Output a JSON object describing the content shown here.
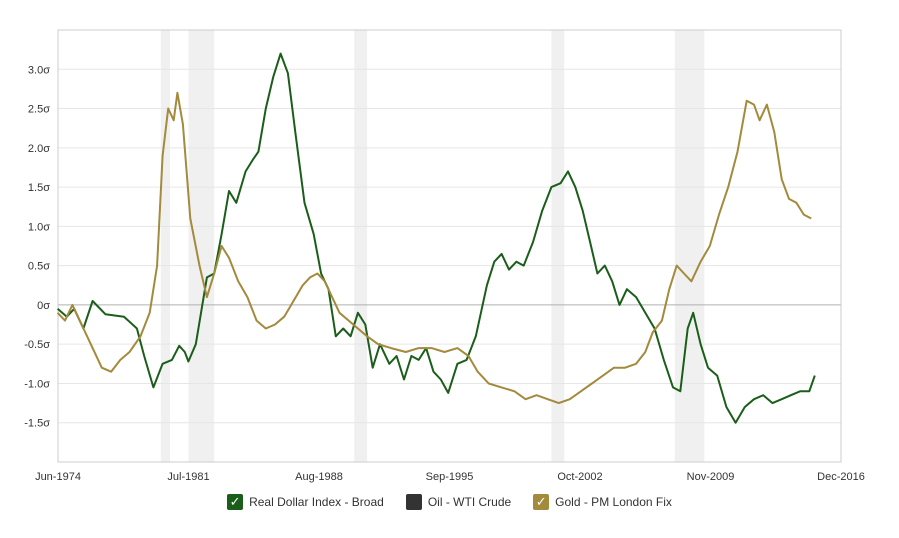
{
  "chart_data": {
    "type": "line",
    "title": "",
    "xlabel": "",
    "ylabel": "",
    "x_ticks": [
      "Jun-1974",
      "Jul-1981",
      "Aug-1988",
      "Sep-1995",
      "Oct-2002",
      "Nov-2009",
      "Dec-2016"
    ],
    "y_ticks": [
      "-1.5σ",
      "-1.0σ",
      "-0.5σ",
      "0σ",
      "0.5σ",
      "1.0σ",
      "1.5σ",
      "2.0σ",
      "2.5σ",
      "3.0σ"
    ],
    "xlim": [
      1974.42,
      2016.92
    ],
    "ylim": [
      -2.0,
      3.5
    ],
    "recessions": [
      [
        1980.0,
        1980.5
      ],
      [
        1981.5,
        1982.9
      ],
      [
        1990.5,
        1991.2
      ],
      [
        2001.2,
        2001.9
      ],
      [
        2007.9,
        2009.5
      ]
    ],
    "series": [
      {
        "name": "Real Dollar Index - Broad",
        "color": "#1a5e1a",
        "points": [
          [
            1974.4,
            -0.05
          ],
          [
            1974.9,
            -0.15
          ],
          [
            1975.3,
            -0.05
          ],
          [
            1975.8,
            -0.3
          ],
          [
            1976.3,
            0.05
          ],
          [
            1977.0,
            -0.12
          ],
          [
            1978.0,
            -0.15
          ],
          [
            1978.7,
            -0.3
          ],
          [
            1979.1,
            -0.65
          ],
          [
            1979.6,
            -1.05
          ],
          [
            1980.1,
            -0.75
          ],
          [
            1980.6,
            -0.7
          ],
          [
            1981.0,
            -0.52
          ],
          [
            1981.3,
            -0.6
          ],
          [
            1981.5,
            -0.72
          ],
          [
            1981.9,
            -0.5
          ],
          [
            1982.5,
            0.35
          ],
          [
            1982.9,
            0.4
          ],
          [
            1983.3,
            0.9
          ],
          [
            1983.7,
            1.45
          ],
          [
            1984.1,
            1.3
          ],
          [
            1984.6,
            1.7
          ],
          [
            1985.0,
            1.85
          ],
          [
            1985.3,
            1.95
          ],
          [
            1985.7,
            2.5
          ],
          [
            1986.1,
            2.9
          ],
          [
            1986.5,
            3.2
          ],
          [
            1986.9,
            2.95
          ],
          [
            1987.3,
            2.2
          ],
          [
            1987.8,
            1.3
          ],
          [
            1988.3,
            0.9
          ],
          [
            1988.7,
            0.4
          ],
          [
            1989.1,
            0.2
          ],
          [
            1989.5,
            -0.4
          ],
          [
            1989.9,
            -0.3
          ],
          [
            1990.3,
            -0.4
          ],
          [
            1990.7,
            -0.1
          ],
          [
            1991.1,
            -0.25
          ],
          [
            1991.5,
            -0.8
          ],
          [
            1991.9,
            -0.5
          ],
          [
            1992.4,
            -0.75
          ],
          [
            1992.8,
            -0.65
          ],
          [
            1993.2,
            -0.95
          ],
          [
            1993.6,
            -0.65
          ],
          [
            1994.0,
            -0.7
          ],
          [
            1994.4,
            -0.55
          ],
          [
            1994.8,
            -0.85
          ],
          [
            1995.2,
            -0.95
          ],
          [
            1995.6,
            -1.12
          ],
          [
            1996.1,
            -0.75
          ],
          [
            1996.6,
            -0.7
          ],
          [
            1997.1,
            -0.4
          ],
          [
            1997.7,
            0.25
          ],
          [
            1998.1,
            0.55
          ],
          [
            1998.5,
            0.65
          ],
          [
            1998.9,
            0.45
          ],
          [
            1999.3,
            0.55
          ],
          [
            1999.7,
            0.5
          ],
          [
            2000.2,
            0.8
          ],
          [
            2000.7,
            1.2
          ],
          [
            2001.2,
            1.5
          ],
          [
            2001.7,
            1.55
          ],
          [
            2002.1,
            1.7
          ],
          [
            2002.5,
            1.5
          ],
          [
            2002.9,
            1.2
          ],
          [
            2003.3,
            0.8
          ],
          [
            2003.7,
            0.4
          ],
          [
            2004.1,
            0.5
          ],
          [
            2004.5,
            0.3
          ],
          [
            2004.9,
            0.0
          ],
          [
            2005.3,
            0.2
          ],
          [
            2005.8,
            0.1
          ],
          [
            2006.3,
            -0.1
          ],
          [
            2006.8,
            -0.3
          ],
          [
            2007.3,
            -0.7
          ],
          [
            2007.8,
            -1.05
          ],
          [
            2008.2,
            -1.1
          ],
          [
            2008.6,
            -0.3
          ],
          [
            2008.9,
            -0.1
          ],
          [
            2009.3,
            -0.5
          ],
          [
            2009.7,
            -0.8
          ],
          [
            2010.2,
            -0.9
          ],
          [
            2010.7,
            -1.3
          ],
          [
            2011.2,
            -1.5
          ],
          [
            2011.7,
            -1.3
          ],
          [
            2012.2,
            -1.2
          ],
          [
            2012.7,
            -1.15
          ],
          [
            2013.2,
            -1.25
          ],
          [
            2013.7,
            -1.2
          ],
          [
            2014.2,
            -1.15
          ],
          [
            2014.7,
            -1.1
          ],
          [
            2015.2,
            -1.1
          ],
          [
            2015.5,
            -0.9
          ]
        ]
      },
      {
        "name": "Oil - WTI Crude",
        "color": "#333333",
        "points": []
      },
      {
        "name": "Gold - PM London Fix",
        "color": "#a38a3c",
        "points": [
          [
            1974.4,
            -0.1
          ],
          [
            1974.8,
            -0.2
          ],
          [
            1975.2,
            0.0
          ],
          [
            1975.7,
            -0.25
          ],
          [
            1976.2,
            -0.5
          ],
          [
            1976.8,
            -0.8
          ],
          [
            1977.3,
            -0.85
          ],
          [
            1977.8,
            -0.7
          ],
          [
            1978.3,
            -0.6
          ],
          [
            1978.9,
            -0.4
          ],
          [
            1979.4,
            -0.1
          ],
          [
            1979.8,
            0.5
          ],
          [
            1980.1,
            1.9
          ],
          [
            1980.4,
            2.5
          ],
          [
            1980.7,
            2.35
          ],
          [
            1980.9,
            2.7
          ],
          [
            1981.2,
            2.3
          ],
          [
            1981.6,
            1.1
          ],
          [
            1982.1,
            0.5
          ],
          [
            1982.5,
            0.1
          ],
          [
            1982.9,
            0.4
          ],
          [
            1983.3,
            0.75
          ],
          [
            1983.7,
            0.6
          ],
          [
            1984.2,
            0.3
          ],
          [
            1984.7,
            0.1
          ],
          [
            1985.2,
            -0.2
          ],
          [
            1985.7,
            -0.3
          ],
          [
            1986.2,
            -0.25
          ],
          [
            1986.7,
            -0.15
          ],
          [
            1987.2,
            0.05
          ],
          [
            1987.7,
            0.25
          ],
          [
            1988.1,
            0.35
          ],
          [
            1988.5,
            0.4
          ],
          [
            1988.9,
            0.3
          ],
          [
            1989.3,
            0.1
          ],
          [
            1989.7,
            -0.1
          ],
          [
            1990.2,
            -0.2
          ],
          [
            1990.7,
            -0.3
          ],
          [
            1991.2,
            -0.4
          ],
          [
            1991.8,
            -0.5
          ],
          [
            1992.5,
            -0.55
          ],
          [
            1993.3,
            -0.6
          ],
          [
            1994.0,
            -0.55
          ],
          [
            1994.7,
            -0.55
          ],
          [
            1995.4,
            -0.6
          ],
          [
            1996.1,
            -0.55
          ],
          [
            1996.7,
            -0.65
          ],
          [
            1997.2,
            -0.85
          ],
          [
            1997.8,
            -1.0
          ],
          [
            1998.5,
            -1.05
          ],
          [
            1999.2,
            -1.1
          ],
          [
            1999.8,
            -1.2
          ],
          [
            2000.4,
            -1.15
          ],
          [
            2001.0,
            -1.2
          ],
          [
            2001.6,
            -1.25
          ],
          [
            2002.2,
            -1.2
          ],
          [
            2002.8,
            -1.1
          ],
          [
            2003.4,
            -1.0
          ],
          [
            2004.0,
            -0.9
          ],
          [
            2004.6,
            -0.8
          ],
          [
            2005.2,
            -0.8
          ],
          [
            2005.8,
            -0.75
          ],
          [
            2006.3,
            -0.6
          ],
          [
            2006.7,
            -0.35
          ],
          [
            2007.2,
            -0.2
          ],
          [
            2007.6,
            0.2
          ],
          [
            2008.0,
            0.5
          ],
          [
            2008.4,
            0.4
          ],
          [
            2008.8,
            0.3
          ],
          [
            2009.3,
            0.55
          ],
          [
            2009.8,
            0.75
          ],
          [
            2010.3,
            1.15
          ],
          [
            2010.8,
            1.5
          ],
          [
            2011.3,
            1.95
          ],
          [
            2011.8,
            2.6
          ],
          [
            2012.2,
            2.55
          ],
          [
            2012.5,
            2.35
          ],
          [
            2012.9,
            2.55
          ],
          [
            2013.3,
            2.2
          ],
          [
            2013.7,
            1.6
          ],
          [
            2014.1,
            1.35
          ],
          [
            2014.5,
            1.3
          ],
          [
            2014.9,
            1.15
          ],
          [
            2015.3,
            1.1
          ]
        ]
      }
    ]
  }
}
